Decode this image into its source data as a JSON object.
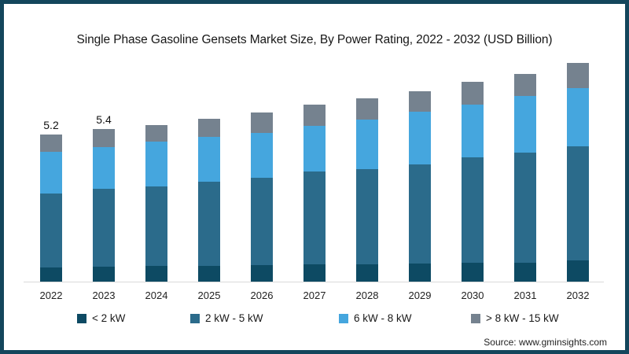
{
  "title": "Single Phase Gasoline Gensets Market Size, By Power Rating, 2022 - 2032 (USD Billion)",
  "source": "Source: www.gminsights.com",
  "colors": {
    "frame_border": "#14465c",
    "axis_line": "#d9d9d9",
    "segment_lt2kw": "#0d4a63",
    "segment_2to5kw": "#2b6b8b",
    "segment_6to8kw": "#45a6de",
    "segment_8to15kw": "#75828f"
  },
  "legend": [
    {
      "label": "< 2 kW",
      "color": "#0d4a63"
    },
    {
      "label": "2 kW - 5 kW",
      "color": "#2b6b8b"
    },
    {
      "label": "6 kW - 8 kW",
      "color": "#45a6de"
    },
    {
      "label": "> 8 kW - 15 kW",
      "color": "#75828f"
    }
  ],
  "chart_data": {
    "type": "bar",
    "stacked": true,
    "title": "Single Phase Gasoline Gensets Market Size, By Power Rating, 2022 - 2032 (USD Billion)",
    "xlabel": "",
    "ylabel": "USD Billion",
    "ylim": [
      0,
      8
    ],
    "gridlines": false,
    "legend_position": "bottom",
    "categories": [
      "2022",
      "2023",
      "2024",
      "2025",
      "2026",
      "2027",
      "2028",
      "2029",
      "2030",
      "2031",
      "2032"
    ],
    "series": [
      {
        "name": "< 2 kW",
        "color": "#0d4a63",
        "values": [
          0.5,
          0.52,
          0.56,
          0.56,
          0.58,
          0.6,
          0.62,
          0.65,
          0.68,
          0.67,
          0.75
        ]
      },
      {
        "name": "2 kW - 5 kW",
        "color": "#2b6b8b",
        "values": [
          2.62,
          2.75,
          2.8,
          2.97,
          3.1,
          3.28,
          3.36,
          3.5,
          3.7,
          3.89,
          4.04
        ]
      },
      {
        "name": "6 kW - 8 kW",
        "color": "#45a6de",
        "values": [
          1.47,
          1.48,
          1.58,
          1.57,
          1.58,
          1.61,
          1.74,
          1.86,
          1.86,
          1.99,
          2.04
        ]
      },
      {
        "name": "> 8 kW - 15 kW",
        "color": "#75828f",
        "values": [
          0.61,
          0.63,
          0.59,
          0.65,
          0.71,
          0.76,
          0.74,
          0.72,
          0.81,
          0.79,
          0.88
        ]
      }
    ],
    "totals_approx": [
      5.2,
      5.4,
      5.5,
      5.7,
      6.0,
      6.2,
      6.5,
      6.7,
      7.0,
      7.3,
      7.7
    ],
    "data_labels": [
      {
        "category": "2022",
        "text": "5.2"
      },
      {
        "category": "2023",
        "text": "5.4"
      }
    ]
  }
}
